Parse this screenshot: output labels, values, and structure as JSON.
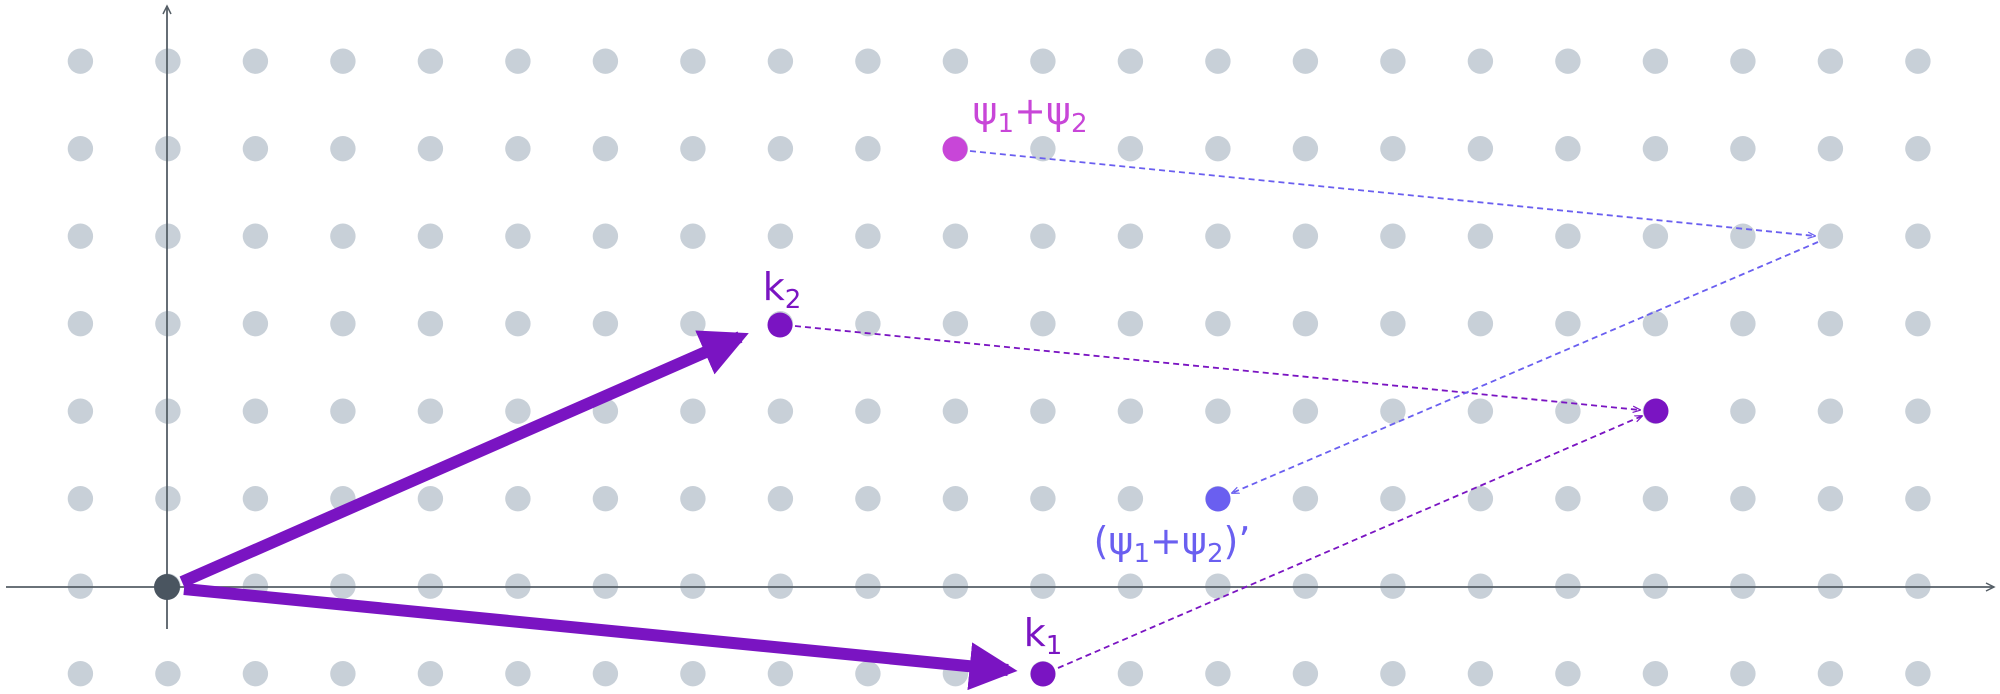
{
  "labels": {
    "k2": {
      "parts": [
        "k",
        "2"
      ]
    },
    "k1": {
      "parts": [
        "k",
        "1"
      ]
    },
    "psi_sum": {
      "parts": [
        "ψ",
        "1",
        "+ψ",
        "2"
      ]
    },
    "psi_sum_prime": {
      "parts": [
        "(ψ",
        "1",
        "+ψ",
        "2",
        ")’"
      ]
    }
  }
}
